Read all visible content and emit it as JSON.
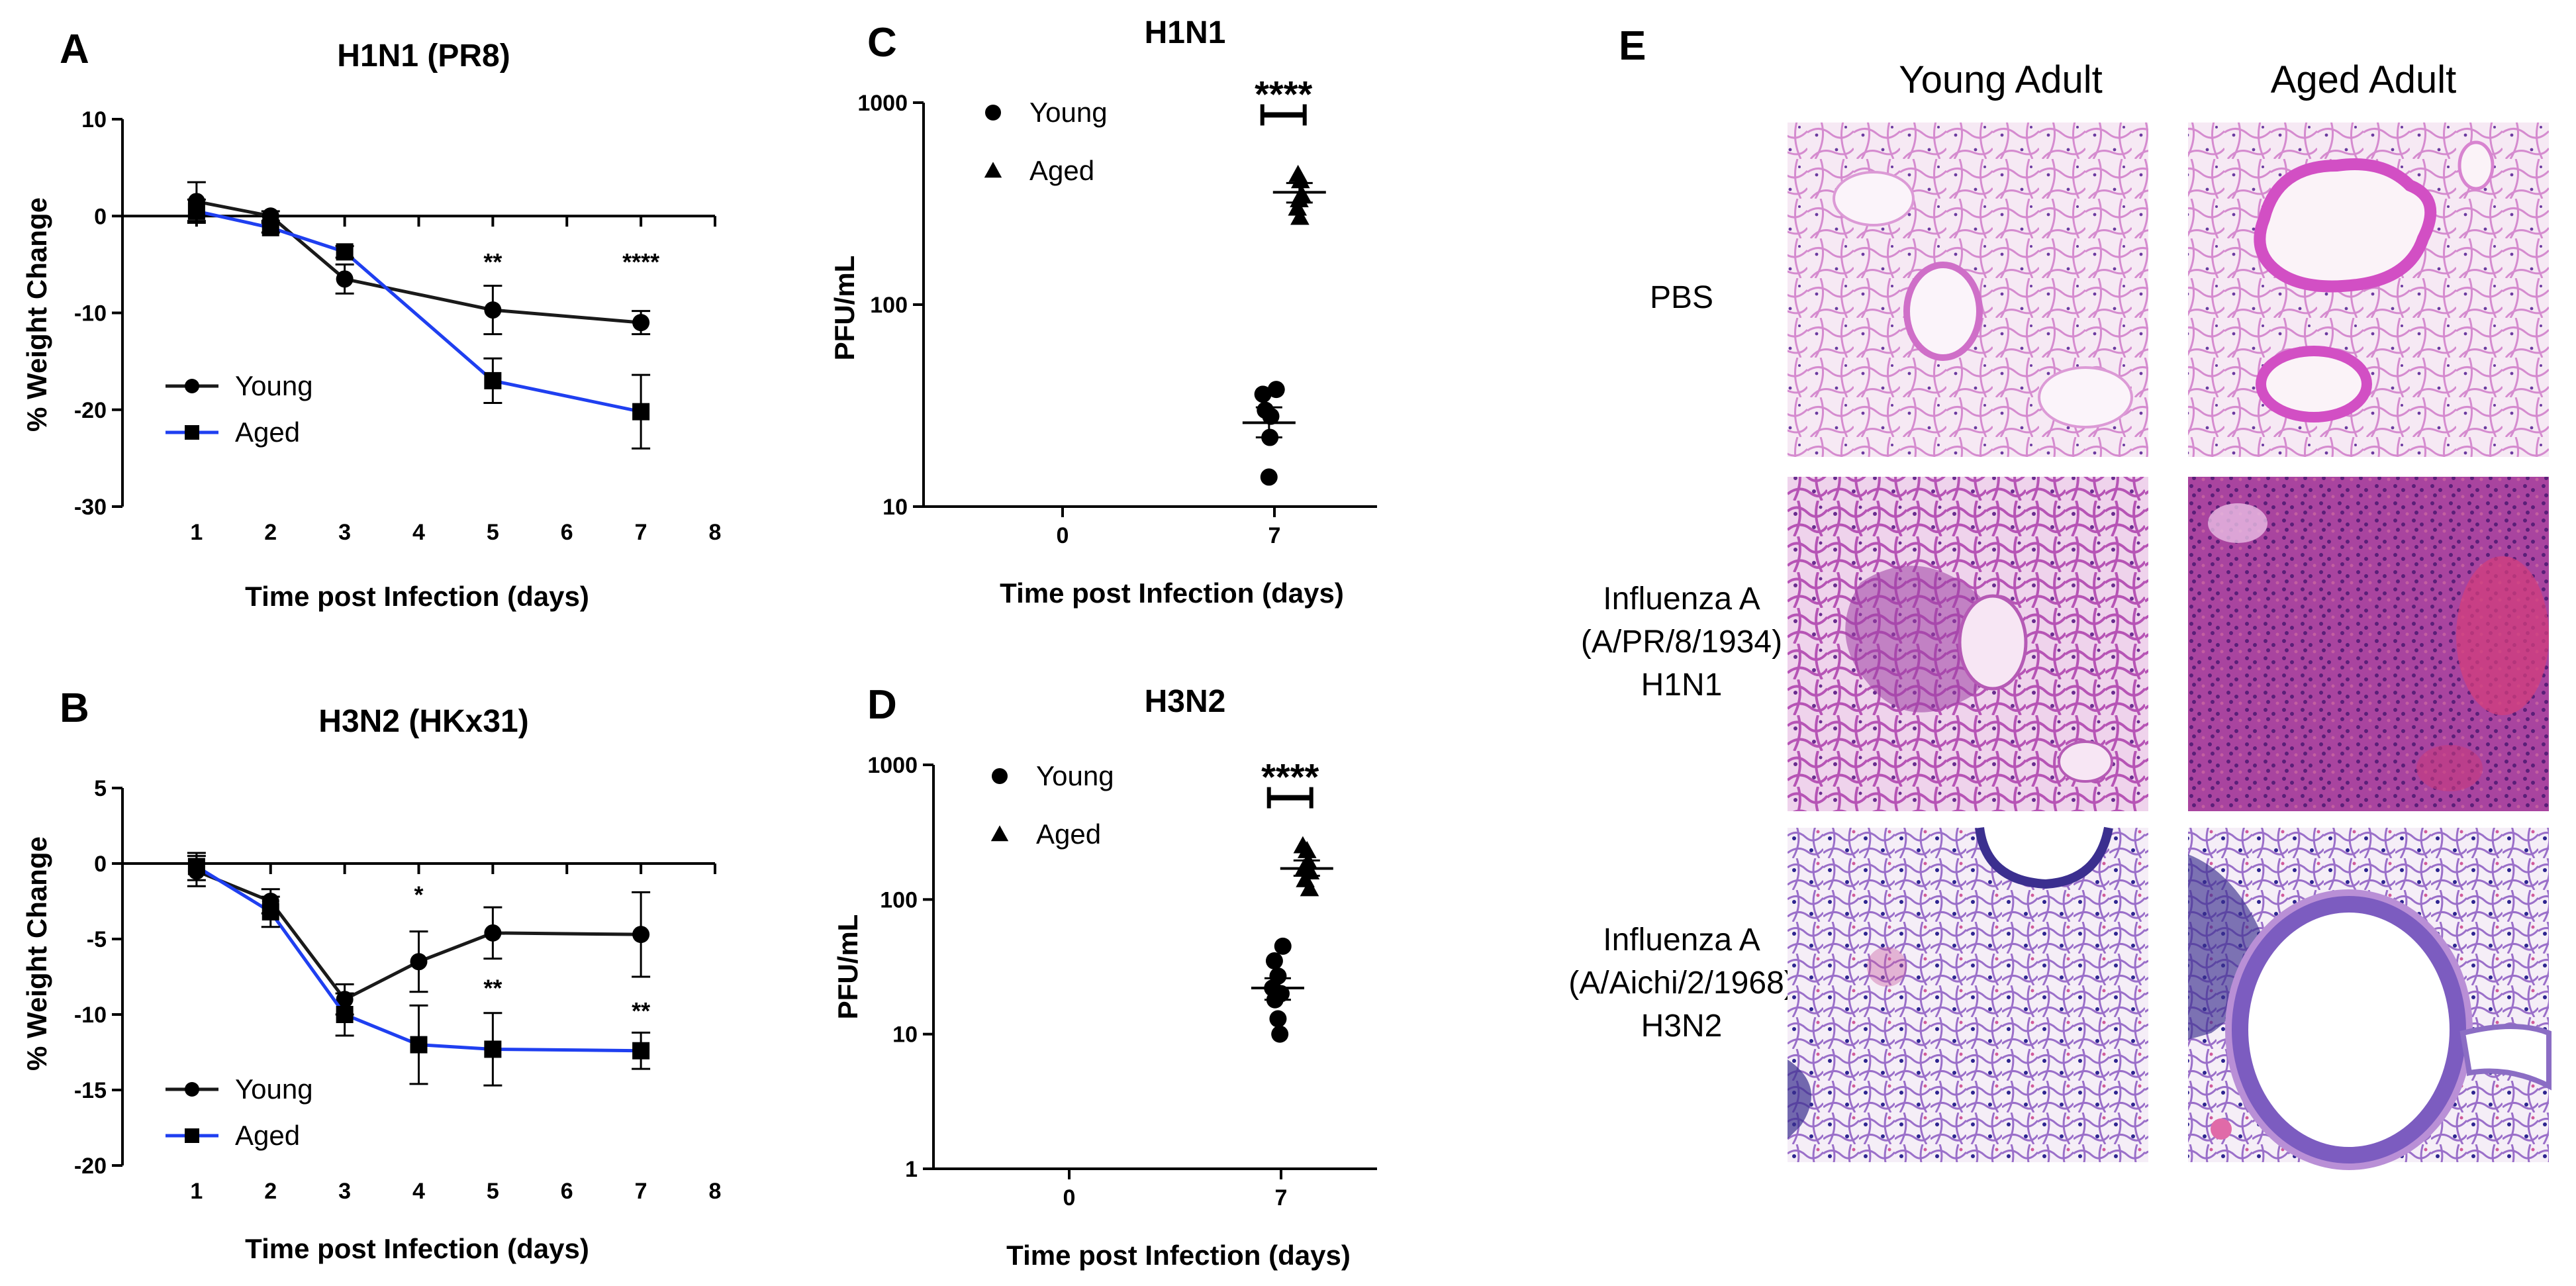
{
  "panels": {
    "A": {
      "letter": "A",
      "chart_data": {
        "type": "line",
        "title": "H1N1 (PR8)",
        "xlabel": "Time post Infection (days)",
        "ylabel": "% Weight Change",
        "xlim": [
          0,
          8
        ],
        "ylim": [
          -30,
          10
        ],
        "xticks": [
          1,
          2,
          3,
          4,
          5,
          6,
          7,
          8
        ],
        "yticks": [
          10,
          0,
          -10,
          -20,
          -30
        ],
        "legend_position": "lower-left",
        "series": [
          {
            "name": "Young",
            "marker": "circle",
            "color": "#1a1a1a",
            "x": [
              1,
              2,
              3,
              5,
              7
            ],
            "y": [
              1.5,
              0,
              -6.5,
              -9.7,
              -11
            ],
            "err": [
              2,
              0.5,
              1.5,
              2.5,
              1.2
            ]
          },
          {
            "name": "Aged",
            "marker": "square",
            "color": "#1f3ff0",
            "x": [
              1,
              2,
              3,
              5,
              7
            ],
            "y": [
              0.5,
              -1.2,
              -3.7,
              -17,
              -20.2
            ],
            "err": [
              1.2,
              0.5,
              0.6,
              2.3,
              3.8
            ]
          }
        ],
        "annotations": [
          {
            "x": 5,
            "y": -5.6,
            "text": "**"
          },
          {
            "x": 7,
            "y": -5.6,
            "text": "****"
          }
        ]
      }
    },
    "B": {
      "letter": "B",
      "chart_data": {
        "type": "line",
        "title": "H3N2 (HKx31)",
        "xlabel": "Time post Infection (days)",
        "ylabel": "% Weight Change",
        "xlim": [
          0,
          8
        ],
        "ylim": [
          -20,
          5
        ],
        "xticks": [
          1,
          2,
          3,
          4,
          5,
          6,
          7,
          8
        ],
        "yticks": [
          5,
          0,
          -5,
          -10,
          -15,
          -20
        ],
        "legend_position": "lower-left",
        "series": [
          {
            "name": "Young",
            "marker": "circle",
            "color": "#1a1a1a",
            "x": [
              1,
              2,
              3,
              4,
              5,
              7
            ],
            "y": [
              -0.5,
              -2.5,
              -9,
              -6.5,
              -4.6,
              -4.7
            ],
            "err": [
              1,
              0.8,
              1,
              2,
              1.7,
              2.8
            ]
          },
          {
            "name": "Aged",
            "marker": "square",
            "color": "#1f3ff0",
            "x": [
              1,
              2,
              3,
              4,
              5,
              7
            ],
            "y": [
              -0.2,
              -3.2,
              -10,
              -12,
              -12.3,
              -12.4
            ],
            "err": [
              0.9,
              1,
              1.4,
              2.6,
              2.4,
              1.2
            ]
          }
        ],
        "annotations": [
          {
            "x": 4,
            "y": -2.6,
            "text": "*"
          },
          {
            "x": 5,
            "y": -8.8,
            "text": "**"
          },
          {
            "x": 7,
            "y": -10.3,
            "text": "**"
          }
        ]
      }
    },
    "C": {
      "letter": "C",
      "chart_data": {
        "type": "scatter",
        "title": "H1N1",
        "xlabel": "Time post Infection (days)",
        "ylabel": "PFU/mL",
        "yscale": "log",
        "ylim": [
          10,
          1000
        ],
        "yticks": [
          1000,
          100,
          10
        ],
        "categories": [
          "0",
          "7"
        ],
        "legend_position": "top-left",
        "series": [
          {
            "name": "Young",
            "marker": "circle",
            "color": "#000000",
            "points": [
              [
                6.62,
                36
              ],
              [
                7.06,
                38
              ],
              [
                6.7,
                30
              ],
              [
                6.88,
                28
              ],
              [
                6.85,
                22
              ],
              [
                6.82,
                14
              ]
            ],
            "mean": 26,
            "sem_low": 22,
            "sem_high": 31
          },
          {
            "name": "Aged",
            "marker": "triangle",
            "color": "#000000",
            "points": [
              [
                7.78,
                440
              ],
              [
                7.86,
                410
              ],
              [
                7.9,
                350
              ],
              [
                7.82,
                330
              ],
              [
                7.76,
                300
              ],
              [
                7.84,
                270
              ]
            ],
            "mean": 360,
            "sem_low": 320,
            "sem_high": 400
          }
        ],
        "significance": {
          "text": "****",
          "x1": 6.6,
          "x2": 8.0,
          "y": 870
        }
      }
    },
    "D": {
      "letter": "D",
      "chart_data": {
        "type": "scatter",
        "title": "H3N2",
        "xlabel": "Time post Infection (days)",
        "ylabel": "PFU/mL",
        "yscale": "log",
        "ylim": [
          1,
          1000
        ],
        "yticks": [
          1000,
          100,
          10,
          1
        ],
        "categories": [
          "0",
          "7"
        ],
        "legend_position": "top-left",
        "series": [
          {
            "name": "Young",
            "marker": "circle",
            "color": "#000000",
            "points": [
              [
                7.06,
                45
              ],
              [
                6.78,
                35
              ],
              [
                6.9,
                27
              ],
              [
                7.0,
                20
              ],
              [
                6.72,
                22
              ],
              [
                6.8,
                18
              ],
              [
                6.9,
                13
              ],
              [
                6.96,
                10
              ]
            ],
            "mean": 22,
            "sem_low": 18,
            "sem_high": 26
          },
          {
            "name": "Aged",
            "marker": "triangle",
            "color": "#000000",
            "points": [
              [
                7.72,
                250
              ],
              [
                7.86,
                230
              ],
              [
                7.9,
                190
              ],
              [
                7.76,
                170
              ],
              [
                7.96,
                160
              ],
              [
                7.8,
                140
              ],
              [
                7.94,
                120
              ]
            ],
            "mean": 170,
            "sem_low": 150,
            "sem_high": 195
          }
        ],
        "significance": {
          "text": "****",
          "x1": 6.6,
          "x2": 8.0,
          "y": 570
        }
      }
    },
    "E": {
      "letter": "E",
      "columns": [
        "Young Adult",
        "Aged Adult"
      ],
      "rows": [
        {
          "lines": [
            "PBS"
          ],
          "style": "normal"
        },
        {
          "lines": [
            "Influenza A",
            "(A/PR/8/1934)",
            "H1N1"
          ],
          "style": "inflamed"
        },
        {
          "lines": [
            "Influenza A",
            "(A/Aichi/2/1968)",
            "H3N2"
          ],
          "style": "stained"
        }
      ],
      "image_kind": "H&E lung histology micrographs",
      "colors": {
        "pbs_bg": "#f2dff0",
        "pbs_tissue": "#d98fd0",
        "h1n1_bg": "#e9c7e6",
        "h1n1_tissue": "#b656b5",
        "h1n1_dense": "#8e2e9a",
        "h1n1_red": "#d03a7a",
        "h3n2_bg": "#f3e7f4",
        "h3n2_tissue": "#8f6fc8",
        "h3n2_nuclei": "#3a2c9a"
      }
    }
  }
}
